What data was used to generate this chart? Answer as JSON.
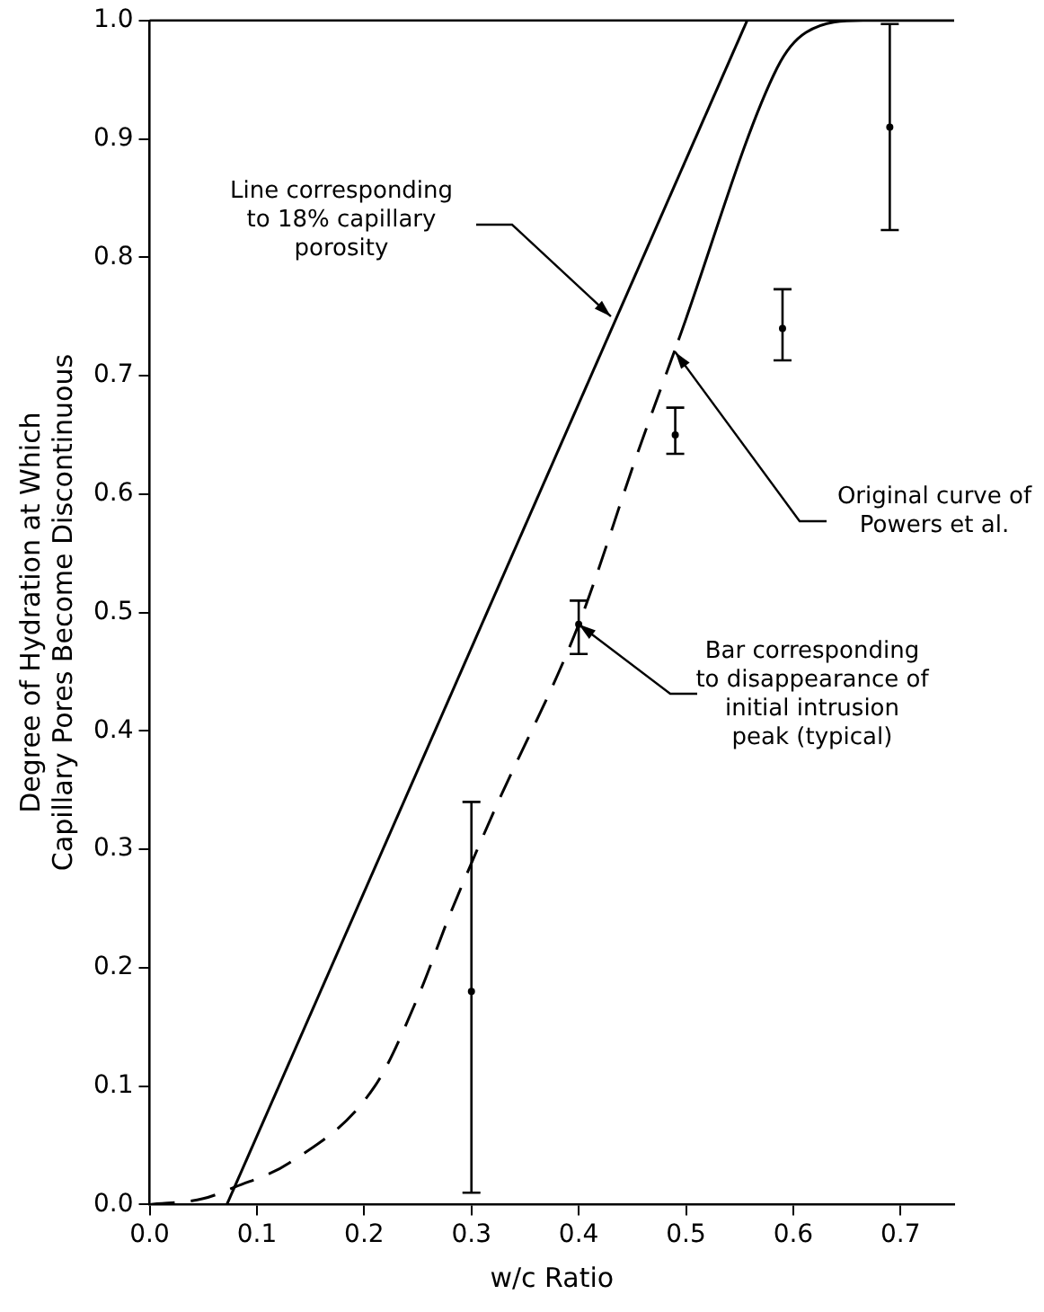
{
  "chart_data": {
    "type": "line",
    "xlabel": "w/c Ratio",
    "ylabel": "Degree of Hydration at Which Capillary Pores Become Discontinuous",
    "xlim": [
      0,
      0.75
    ],
    "ylim": [
      0,
      1.0
    ],
    "xticks": [
      {
        "value": 0,
        "label": "0.0"
      },
      0.1,
      0.2,
      0.3,
      0.4,
      0.5,
      0.6,
      0.7
    ],
    "yticks": [
      {
        "value": 0,
        "label": "0.0"
      },
      0.1,
      0.2,
      0.3,
      0.4,
      0.5,
      0.6,
      0.7,
      0.8,
      0.9,
      {
        "value": 1.0,
        "label": "1.0"
      }
    ],
    "grid": false,
    "legend": false,
    "marker": "none",
    "series": [
      {
        "color": "#000000",
        "line_style": "solid",
        "x": [
          0.072,
          0.557
        ],
        "values": [
          0,
          1.0
        ]
      },
      {
        "type": "line",
        "color": "#000000",
        "line_style": "dashed",
        "x": [
          0,
          0.05,
          0.08,
          0.13,
          0.21,
          0.25,
          0.28,
          0.32,
          0.4,
          0.455,
          0.493
        ],
        "values": [
          0,
          0.005,
          0.015,
          0.035,
          0.1,
          0.175,
          0.245,
          0.33,
          0.49,
          0.635,
          0.73
        ]
      },
      {
        "type": "line",
        "color": "#000000",
        "line_style": "solid",
        "x": [
          0.493,
          0.585,
          0.612,
          0.665,
          0.75
        ],
        "values": [
          0.73,
          0.96,
          0.99,
          1.0,
          1.0
        ]
      },
      {
        "type": "scatter",
        "color": "#000000",
        "marker": "circle",
        "x": [
          0.3,
          0.4,
          0.49,
          0.59,
          0.69
        ],
        "values": [
          0.18,
          0.49,
          0.65,
          0.74,
          0.91
        ],
        "errors": [
          [
            0.01,
            0.34
          ],
          [
            0.465,
            0.51
          ],
          [
            0.634,
            0.673
          ],
          [
            0.713,
            0.773
          ],
          [
            0.823,
            0.997
          ]
        ]
      }
    ],
    "annotations": [
      {
        "text": "Line corresponding to 18% capillary porosity",
        "x": 0.43,
        "y": 0.75
      },
      {
        "text": "Original curve of Powers et al.",
        "x": 0.49,
        "y": 0.72
      },
      {
        "text": "Bar corresponding to disappearance of initial intrusion peak (typical)",
        "x": 0.4,
        "y": 0.49
      }
    ]
  }
}
